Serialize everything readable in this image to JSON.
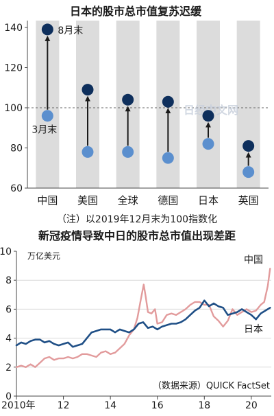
{
  "chart_data": [
    {
      "type": "dumbbell",
      "title": "日本的股市总市值复苏迟缓",
      "ylim": [
        60,
        140
      ],
      "yticks": [
        60,
        80,
        100,
        120,
        140
      ],
      "reference_line": 100,
      "categories": [
        "中国",
        "美国",
        "全球",
        "德国",
        "日本",
        "英国"
      ],
      "series": [
        {
          "name": "3月末",
          "color": "#5b8fce",
          "values": [
            96,
            78,
            78,
            75,
            82,
            68
          ]
        },
        {
          "name": "8月末",
          "color": "#0e2f5c",
          "values": [
            139,
            109,
            104,
            103,
            96,
            81
          ]
        }
      ],
      "note": "（注）以2019年12月末为100指数化",
      "watermark": "日经中文网"
    },
    {
      "type": "line",
      "title": "新冠疫情导致中日的股市总市值出现差距",
      "ylabel": "万亿美元",
      "ylim": [
        0,
        10
      ],
      "yticks": [
        0,
        2,
        4,
        6,
        8,
        10
      ],
      "xlim": [
        2010,
        2020.85
      ],
      "xticks": [
        {
          "value": 2010,
          "label": "2010年"
        },
        {
          "value": 2012,
          "label": "12"
        },
        {
          "value": 2014,
          "label": "14"
        },
        {
          "value": 2016,
          "label": "16"
        },
        {
          "value": 2018,
          "label": "18"
        },
        {
          "value": 2020,
          "label": "20"
        }
      ],
      "series": [
        {
          "name": "中国",
          "color": "#e29b9c",
          "x": [
            2010.0,
            2010.2,
            2010.4,
            2010.6,
            2010.8,
            2011.0,
            2011.2,
            2011.4,
            2011.6,
            2011.8,
            2012.0,
            2012.2,
            2012.4,
            2012.6,
            2012.8,
            2013.0,
            2013.2,
            2013.4,
            2013.6,
            2013.8,
            2014.0,
            2014.2,
            2014.4,
            2014.6,
            2014.8,
            2015.0,
            2015.15,
            2015.3,
            2015.42,
            2015.5,
            2015.6,
            2015.75,
            2015.9,
            2016.0,
            2016.2,
            2016.4,
            2016.6,
            2016.8,
            2017.0,
            2017.2,
            2017.4,
            2017.6,
            2017.8,
            2018.0,
            2018.2,
            2018.4,
            2018.6,
            2018.8,
            2019.0,
            2019.2,
            2019.4,
            2019.6,
            2019.8,
            2020.0,
            2020.2,
            2020.4,
            2020.55,
            2020.7,
            2020.8
          ],
          "values": [
            2.0,
            2.1,
            2.0,
            2.2,
            2.0,
            2.3,
            2.6,
            2.7,
            2.5,
            2.6,
            2.6,
            2.7,
            2.6,
            2.7,
            2.9,
            2.9,
            2.8,
            2.7,
            3.0,
            3.1,
            2.9,
            3.0,
            3.3,
            3.6,
            4.2,
            4.6,
            5.4,
            6.7,
            7.7,
            6.9,
            5.8,
            5.7,
            6.0,
            5.0,
            5.1,
            5.6,
            5.7,
            5.6,
            5.8,
            6.0,
            6.3,
            6.5,
            6.5,
            6.3,
            6.3,
            5.5,
            5.2,
            4.8,
            5.2,
            6.0,
            5.6,
            5.8,
            6.0,
            5.8,
            5.9,
            6.3,
            6.5,
            7.6,
            8.8
          ]
        },
        {
          "name": "日本",
          "color": "#1f4f86",
          "x": [
            2010.0,
            2010.2,
            2010.4,
            2010.6,
            2010.8,
            2011.0,
            2011.2,
            2011.4,
            2011.6,
            2011.8,
            2012.0,
            2012.2,
            2012.4,
            2012.6,
            2012.8,
            2013.0,
            2013.2,
            2013.4,
            2013.6,
            2013.8,
            2014.0,
            2014.2,
            2014.4,
            2014.6,
            2014.8,
            2015.0,
            2015.2,
            2015.4,
            2015.6,
            2015.8,
            2016.0,
            2016.2,
            2016.4,
            2016.6,
            2016.8,
            2017.0,
            2017.2,
            2017.4,
            2017.6,
            2017.8,
            2018.0,
            2018.2,
            2018.4,
            2018.6,
            2018.8,
            2019.0,
            2019.2,
            2019.4,
            2019.6,
            2019.8,
            2020.0,
            2020.2,
            2020.4,
            2020.6,
            2020.8
          ],
          "values": [
            3.5,
            3.7,
            3.6,
            3.8,
            3.9,
            3.9,
            3.7,
            3.8,
            3.6,
            3.5,
            3.6,
            3.7,
            3.4,
            3.5,
            3.6,
            4.0,
            4.4,
            4.5,
            4.6,
            4.6,
            4.6,
            4.4,
            4.6,
            4.5,
            4.4,
            4.6,
            5.0,
            5.1,
            4.7,
            4.8,
            4.6,
            4.8,
            4.9,
            5.0,
            5.0,
            5.1,
            5.3,
            5.6,
            5.9,
            6.1,
            6.6,
            6.2,
            6.4,
            6.2,
            6.1,
            5.6,
            5.7,
            5.8,
            6.0,
            5.8,
            5.6,
            5.3,
            5.7,
            5.9,
            6.1
          ]
        }
      ],
      "source": "（数据来源）QUICK FactSet"
    }
  ]
}
